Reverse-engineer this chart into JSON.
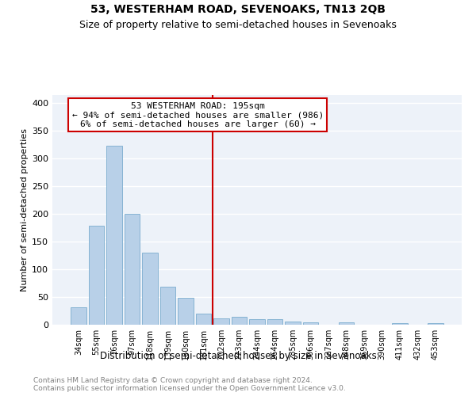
{
  "title": "53, WESTERHAM ROAD, SEVENOAKS, TN13 2QB",
  "subtitle": "Size of property relative to semi-detached houses in Sevenoaks",
  "xlabel": "Distribution of semi-detached houses by size in Sevenoaks",
  "ylabel": "Number of semi-detached properties",
  "categories": [
    "34sqm",
    "55sqm",
    "76sqm",
    "97sqm",
    "118sqm",
    "139sqm",
    "160sqm",
    "181sqm",
    "202sqm",
    "223sqm",
    "244sqm",
    "264sqm",
    "285sqm",
    "306sqm",
    "327sqm",
    "348sqm",
    "369sqm",
    "390sqm",
    "411sqm",
    "432sqm",
    "453sqm"
  ],
  "values": [
    32,
    179,
    323,
    200,
    130,
    69,
    48,
    20,
    11,
    15,
    10,
    10,
    6,
    4,
    0,
    4,
    0,
    0,
    3,
    0,
    3
  ],
  "bar_color": "#b8d0e8",
  "bar_edge_color": "#7aacce",
  "vline_x": 8.0,
  "vline_color": "#cc0000",
  "annotation_title": "53 WESTERHAM ROAD: 195sqm",
  "annotation_line1": "← 94% of semi-detached houses are smaller (986)",
  "annotation_line2": "6% of semi-detached houses are larger (60) →",
  "annotation_box_color": "#cc0000",
  "ylim": [
    0,
    415
  ],
  "yticks": [
    0,
    50,
    100,
    150,
    200,
    250,
    300,
    350,
    400
  ],
  "footer_line1": "Contains HM Land Registry data © Crown copyright and database right 2024.",
  "footer_line2": "Contains public sector information licensed under the Open Government Licence v3.0.",
  "bg_color": "#edf2f9",
  "grid_color": "#ffffff",
  "title_fontsize": 10,
  "subtitle_fontsize": 9
}
